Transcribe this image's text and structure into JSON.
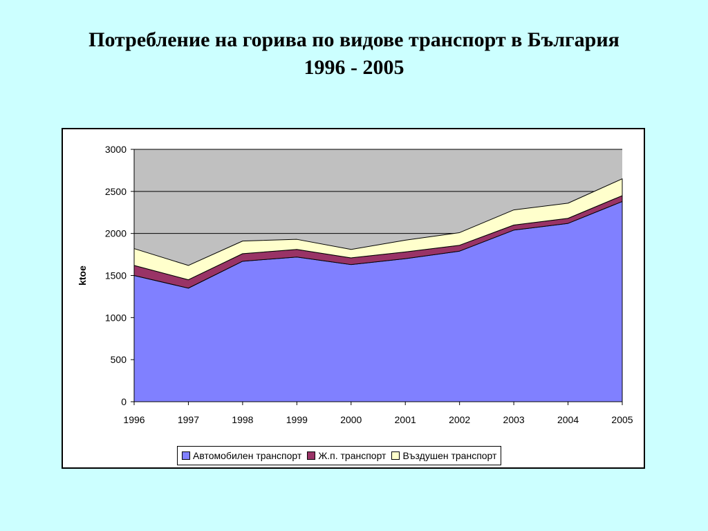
{
  "title": {
    "line1": "Потребление на горива по видове транспорт в България",
    "line2": "1996 - 2005"
  },
  "chart_data": {
    "type": "area",
    "stacked": true,
    "x": [
      "1996",
      "1997",
      "1998",
      "1999",
      "2000",
      "2001",
      "2002",
      "2003",
      "2004",
      "2005"
    ],
    "series": [
      {
        "name": "Автомобилен транспорт",
        "color": "#8080ff",
        "values": [
          1500,
          1350,
          1670,
          1720,
          1630,
          1700,
          1790,
          2040,
          2120,
          2380
        ]
      },
      {
        "name": "Ж.п. транспорт",
        "color": "#993366",
        "values": [
          120,
          100,
          90,
          90,
          80,
          80,
          70,
          60,
          60,
          70
        ]
      },
      {
        "name": "Въздушен транспорт",
        "color": "#ffffcc",
        "values": [
          200,
          170,
          150,
          120,
          100,
          140,
          150,
          180,
          180,
          200
        ]
      }
    ],
    "ylabel": "ktoe",
    "xlabel": "",
    "ylim": [
      0,
      3000
    ],
    "yticks": [
      0,
      500,
      1000,
      1500,
      2000,
      2500,
      3000
    ],
    "plot_background": "#c0c0c0",
    "grid": true,
    "legend_position": "bottom"
  }
}
